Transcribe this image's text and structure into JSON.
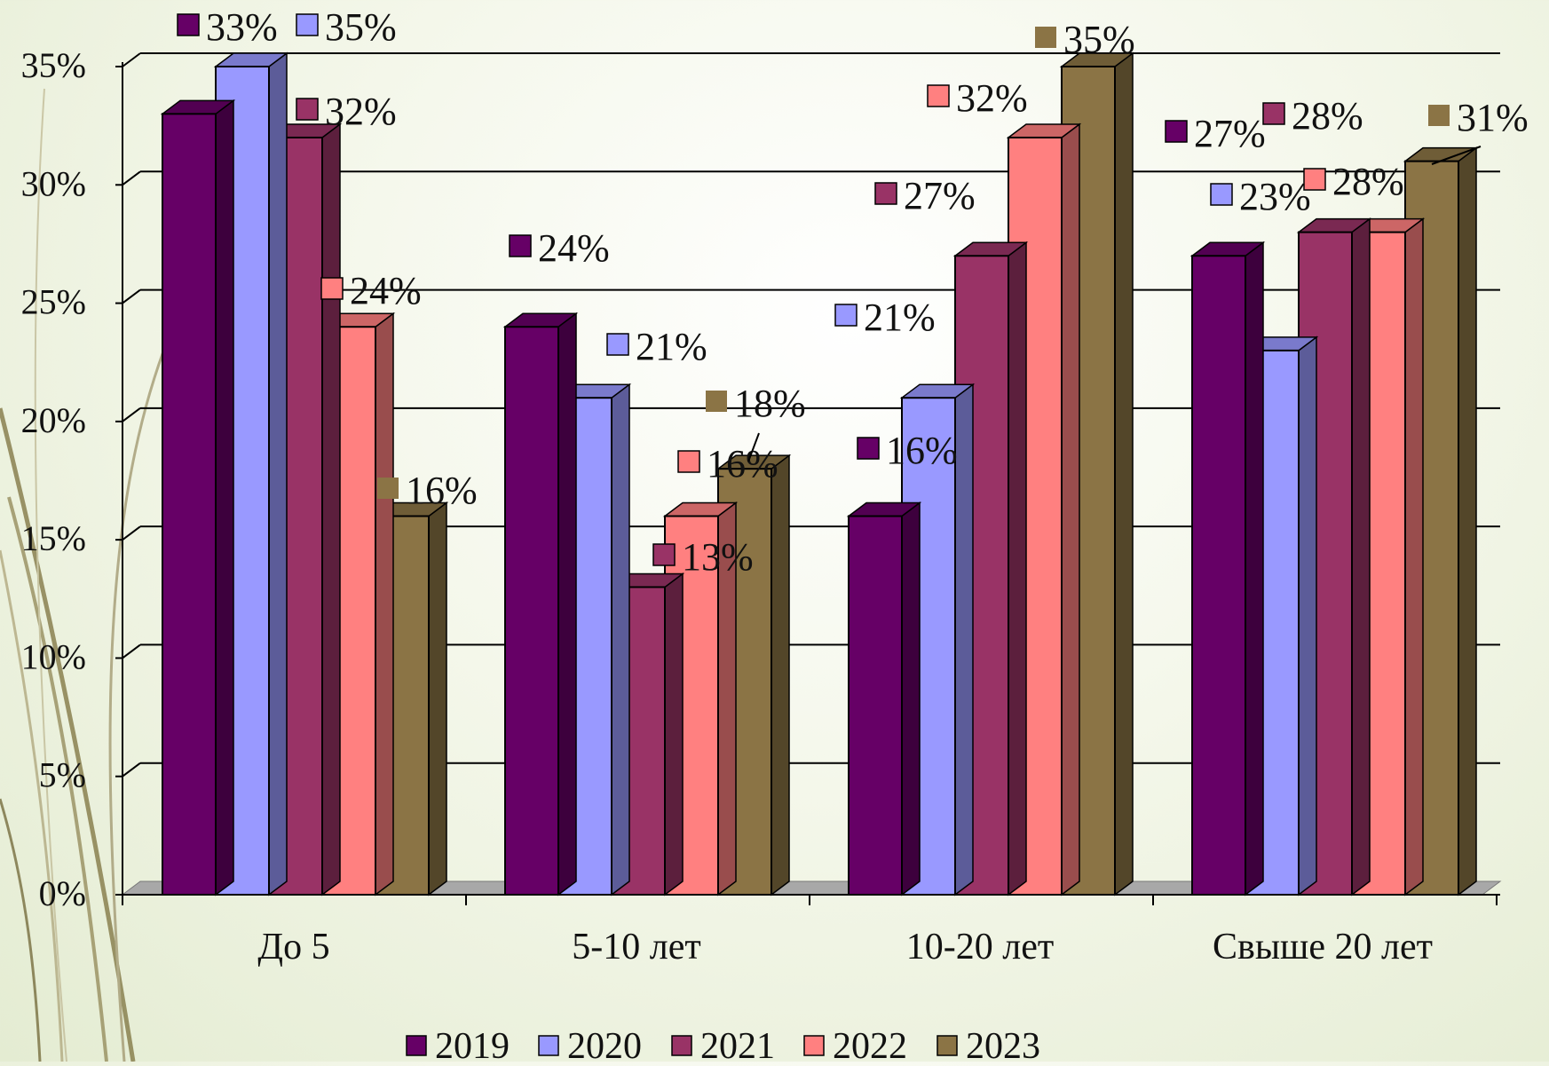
{
  "chart_data": {
    "type": "bar",
    "variant": "3d-clustered-column",
    "categories": [
      "До 5",
      "5-10 лет",
      "10-20 лет",
      "Свыше 20 лет"
    ],
    "series": [
      {
        "name": "2019",
        "values": [
          33,
          24,
          16,
          27
        ],
        "color": "#660066",
        "labels": [
          "33%",
          "24%",
          "16%",
          "27%"
        ]
      },
      {
        "name": "2020",
        "values": [
          35,
          21,
          21,
          23
        ],
        "color": "#9999ff",
        "labels": [
          "35%",
          "21%",
          "21%",
          "23%"
        ]
      },
      {
        "name": "2021",
        "values": [
          32,
          13,
          27,
          28
        ],
        "color": "#993366",
        "labels": [
          "32%",
          "13%",
          "27%",
          "28%"
        ]
      },
      {
        "name": "2022",
        "values": [
          24,
          16,
          32,
          28
        ],
        "color": "#ff8080",
        "labels": [
          "24%",
          "16%",
          "32%",
          "28%"
        ]
      },
      {
        "name": "2023",
        "values": [
          16,
          18,
          35,
          31
        ],
        "color": "#8b7445",
        "labels": [
          "16%",
          "18%",
          "35%",
          "31%"
        ]
      }
    ],
    "y_ticks": [
      "0%",
      "5%",
      "10%",
      "15%",
      "20%",
      "25%",
      "30%",
      "35%"
    ],
    "ylim": [
      0,
      35
    ],
    "grid": true,
    "legend": "bottom"
  }
}
